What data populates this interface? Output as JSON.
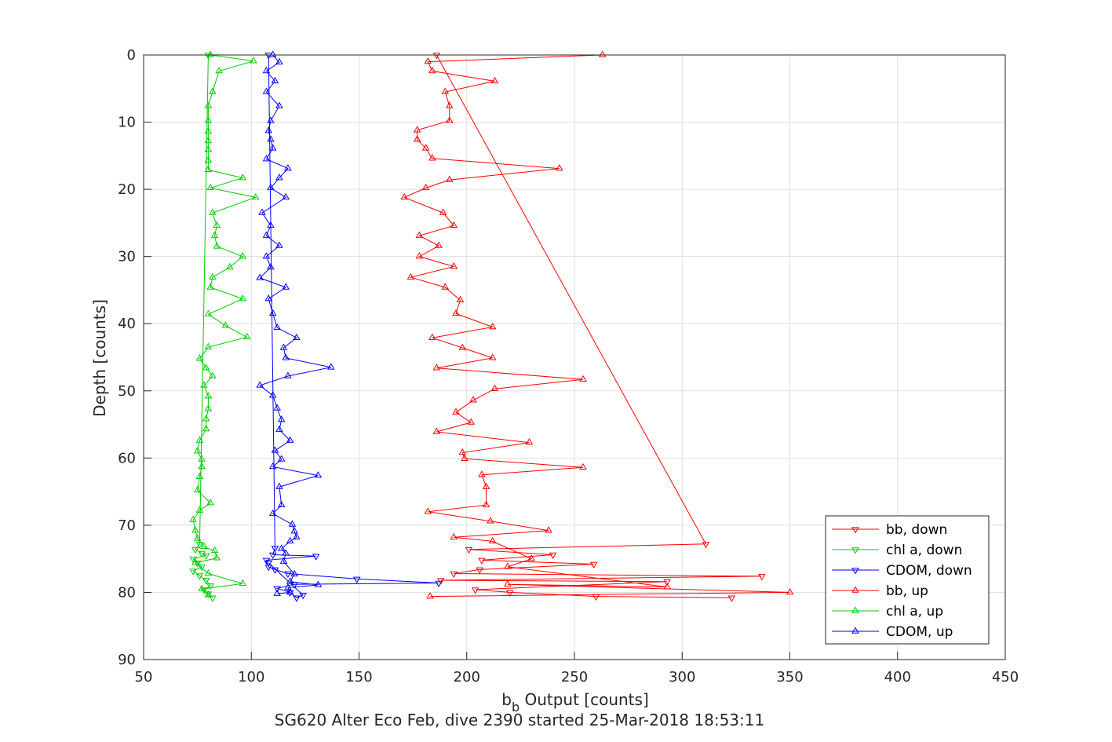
{
  "chart_data": {
    "type": "line",
    "title": "SG620 Alter Eco Feb, dive 2390 started 25-Mar-2018 18:53:11",
    "xlabel_main": "b",
    "xlabel_sub": "b",
    "xlabel_rest": " Output [counts]",
    "ylabel": "Depth [counts]",
    "xlim": [
      50,
      450
    ],
    "ylim": [
      0,
      90
    ],
    "y_reversed": true,
    "grid": true,
    "x_ticks": [
      50,
      100,
      150,
      200,
      250,
      300,
      350,
      400,
      450
    ],
    "y_ticks": [
      0,
      10,
      20,
      30,
      40,
      50,
      60,
      70,
      80,
      90
    ],
    "legend_position": "bottom-right",
    "series": [
      {
        "name": "bb, down",
        "color": "#ff0000",
        "marker": "triangle-down",
        "points": [
          [
            186,
            0
          ],
          [
            311,
            72.8
          ],
          [
            201,
            73.6
          ],
          [
            240,
            74.4
          ],
          [
            207,
            75.2
          ],
          [
            259,
            75.8
          ],
          [
            206,
            76.6
          ],
          [
            194,
            77.2
          ],
          [
            337,
            77.6
          ],
          [
            188,
            78.2
          ],
          [
            293,
            78.4
          ],
          [
            204,
            79.6
          ],
          [
            220,
            80
          ],
          [
            260,
            80.6
          ],
          [
            323,
            80.8
          ]
        ]
      },
      {
        "name": "chl a, down",
        "color": "#00cc00",
        "marker": "triangle-down",
        "points": [
          [
            80,
            0
          ],
          [
            76,
            72.8
          ],
          [
            74,
            73.6
          ],
          [
            77,
            74.2
          ],
          [
            79,
            74.5
          ],
          [
            73,
            75
          ],
          [
            75,
            75.6
          ],
          [
            77,
            76.2
          ],
          [
            73,
            76.8
          ],
          [
            76,
            77.5
          ],
          [
            79,
            78.2
          ],
          [
            81,
            79
          ],
          [
            78,
            79.6
          ],
          [
            80,
            80.2
          ],
          [
            82,
            80.8
          ]
        ]
      },
      {
        "name": "CDOM, down",
        "color": "#0000ff",
        "marker": "triangle-down",
        "points": [
          [
            108,
            0
          ],
          [
            111,
            73.4
          ],
          [
            110,
            74.4
          ],
          [
            130,
            74.6
          ],
          [
            107,
            75.2
          ],
          [
            108,
            76.2
          ],
          [
            111,
            76.6
          ],
          [
            117,
            77.2
          ],
          [
            149,
            78
          ],
          [
            187,
            78.6
          ],
          [
            120,
            78.8
          ],
          [
            112,
            79.4
          ],
          [
            118,
            80
          ],
          [
            121,
            80.8
          ],
          [
            124,
            80.4
          ],
          [
            108,
            75.6
          ]
        ]
      },
      {
        "name": "bb, up",
        "color": "#ff0000",
        "marker": "triangle-up",
        "points": [
          [
            263,
            0
          ],
          [
            182,
            1
          ],
          [
            184,
            2.4
          ],
          [
            213,
            3.9
          ],
          [
            190,
            5.5
          ],
          [
            192,
            7.6
          ],
          [
            192,
            9.8
          ],
          [
            177,
            11.2
          ],
          [
            177,
            12.6
          ],
          [
            181,
            13.9
          ],
          [
            184,
            15.4
          ],
          [
            243,
            16.9
          ],
          [
            192,
            18.6
          ],
          [
            181,
            19.8
          ],
          [
            171,
            21.2
          ],
          [
            189,
            23.5
          ],
          [
            194,
            25.4
          ],
          [
            178,
            26.9
          ],
          [
            187,
            28.4
          ],
          [
            178,
            30
          ],
          [
            194,
            31.5
          ],
          [
            174,
            33.1
          ],
          [
            190,
            34.6
          ],
          [
            197,
            36.5
          ],
          [
            195,
            38.5
          ],
          [
            212,
            40.5
          ],
          [
            184,
            42.1
          ],
          [
            198,
            43.6
          ],
          [
            212,
            45.1
          ],
          [
            186,
            46.6
          ],
          [
            254,
            48.3
          ],
          [
            213,
            49.7
          ],
          [
            203,
            51.4
          ],
          [
            195,
            53.2
          ],
          [
            202,
            54.7
          ],
          [
            186,
            56.1
          ],
          [
            229,
            57.7
          ],
          [
            198,
            59.2
          ],
          [
            199,
            60.1
          ],
          [
            254,
            61.4
          ],
          [
            207,
            62.5
          ],
          [
            209,
            64.3
          ],
          [
            209,
            67
          ],
          [
            182,
            68
          ],
          [
            211,
            69.4
          ],
          [
            238,
            70.8
          ],
          [
            194,
            71.8
          ],
          [
            212,
            72.4
          ],
          [
            230,
            75
          ],
          [
            219,
            76.2
          ],
          [
            293,
            79.2
          ],
          [
            219,
            78.8
          ],
          [
            350,
            80
          ],
          [
            183,
            80.6
          ]
        ]
      },
      {
        "name": "chl a, up",
        "color": "#00cc00",
        "marker": "triangle-up",
        "points": [
          [
            81,
            0
          ],
          [
            101,
            0.9
          ],
          [
            85,
            2.4
          ],
          [
            82,
            5.5
          ],
          [
            80,
            7.6
          ],
          [
            80,
            9.8
          ],
          [
            80,
            11.4
          ],
          [
            80,
            12.8
          ],
          [
            80,
            14.1
          ],
          [
            80,
            15.7
          ],
          [
            80,
            17.1
          ],
          [
            96,
            18.3
          ],
          [
            81,
            19.8
          ],
          [
            102,
            21.2
          ],
          [
            82,
            23.5
          ],
          [
            84,
            25.4
          ],
          [
            83,
            26.9
          ],
          [
            84,
            28.5
          ],
          [
            96,
            30
          ],
          [
            90,
            31.6
          ],
          [
            82,
            33.1
          ],
          [
            81,
            34.6
          ],
          [
            96,
            36.3
          ],
          [
            80,
            38.6
          ],
          [
            88,
            40.3
          ],
          [
            98,
            42
          ],
          [
            80,
            43.5
          ],
          [
            76,
            45.2
          ],
          [
            79,
            46.6
          ],
          [
            82,
            47.8
          ],
          [
            78,
            49.2
          ],
          [
            80,
            50.8
          ],
          [
            80,
            52.7
          ],
          [
            79,
            54.2
          ],
          [
            79,
            55.7
          ],
          [
            76,
            57.4
          ],
          [
            75,
            59
          ],
          [
            77,
            60.2
          ],
          [
            77,
            61.3
          ],
          [
            76,
            62.8
          ],
          [
            75,
            64.8
          ],
          [
            81,
            66.7
          ],
          [
            76,
            67.8
          ],
          [
            73,
            69.2
          ],
          [
            74,
            70.8
          ],
          [
            75,
            72
          ],
          [
            78,
            73.2
          ],
          [
            83,
            73.8
          ],
          [
            84,
            74.9
          ],
          [
            74,
            75.6
          ],
          [
            80,
            77.2
          ],
          [
            96,
            78.7
          ],
          [
            77,
            79.5
          ],
          [
            80,
            80.4
          ]
        ]
      },
      {
        "name": "CDOM, up",
        "color": "#0000ff",
        "marker": "triangle-up",
        "points": [
          [
            110,
            0
          ],
          [
            113,
            1.1
          ],
          [
            107,
            2.4
          ],
          [
            111,
            3.9
          ],
          [
            107,
            5.5
          ],
          [
            113,
            7.6
          ],
          [
            109,
            9.8
          ],
          [
            108,
            11.3
          ],
          [
            109,
            12.6
          ],
          [
            110,
            13.9
          ],
          [
            107,
            15.5
          ],
          [
            117,
            16.9
          ],
          [
            113,
            18.3
          ],
          [
            109,
            19.8
          ],
          [
            116,
            21.2
          ],
          [
            105,
            23.5
          ],
          [
            109,
            25.4
          ],
          [
            107,
            26.9
          ],
          [
            113,
            28.4
          ],
          [
            107,
            30
          ],
          [
            109,
            31.6
          ],
          [
            104,
            33.2
          ],
          [
            116,
            34.6
          ],
          [
            108,
            36.3
          ],
          [
            110,
            38.5
          ],
          [
            112,
            40.6
          ],
          [
            121,
            42.1
          ],
          [
            115,
            43.6
          ],
          [
            116,
            45.1
          ],
          [
            137,
            46.5
          ],
          [
            117,
            47.8
          ],
          [
            104,
            49.2
          ],
          [
            110,
            50.7
          ],
          [
            112,
            52.6
          ],
          [
            114,
            54.3
          ],
          [
            113,
            55.8
          ],
          [
            118,
            57.4
          ],
          [
            111,
            58.9
          ],
          [
            114,
            60.2
          ],
          [
            110,
            61.3
          ],
          [
            131,
            62.6
          ],
          [
            113,
            64.3
          ],
          [
            114,
            67
          ],
          [
            110,
            68.3
          ],
          [
            119,
            69.9
          ],
          [
            120,
            70.9
          ],
          [
            121,
            71.8
          ],
          [
            118,
            72.4
          ],
          [
            114,
            73.5
          ],
          [
            116,
            74.2
          ],
          [
            115,
            75.4
          ],
          [
            120,
            77.3
          ],
          [
            118,
            78.4
          ],
          [
            131,
            78.9
          ],
          [
            117,
            79.3
          ],
          [
            118,
            80
          ],
          [
            112,
            80.2
          ]
        ]
      }
    ]
  }
}
